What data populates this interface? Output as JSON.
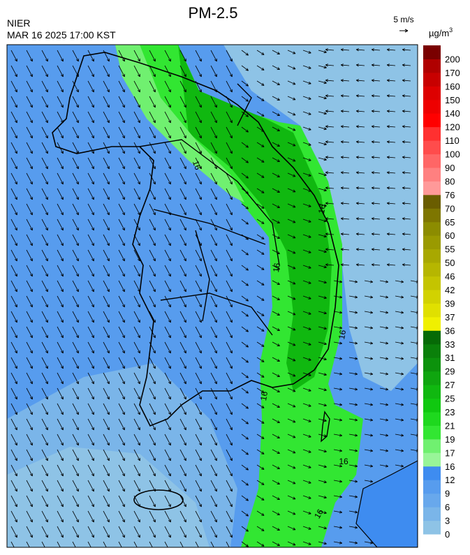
{
  "header": {
    "title": "PM-2.5",
    "agency": "NIER",
    "timestamp": "MAR 16 2025 17:00 KST",
    "wind_scale": "5 m/s"
  },
  "colorbar": {
    "unit": "µg/m",
    "unit_exponent": "3",
    "levels": [
      0,
      3,
      6,
      9,
      12,
      16,
      17,
      19,
      21,
      23,
      25,
      27,
      29,
      31,
      33,
      36,
      37,
      39,
      42,
      46,
      50,
      55,
      60,
      65,
      70,
      76,
      80,
      90,
      100,
      110,
      120,
      140,
      150,
      160,
      170,
      200
    ],
    "colors": [
      "#8ec3e6",
      "#7ab5e9",
      "#68a8ec",
      "#579cee",
      "#3e8cf0",
      "#98f598",
      "#70f070",
      "#32e632",
      "#1ed81e",
      "#10c810",
      "#10b810",
      "#0fa50f",
      "#0c920c",
      "#0a800a",
      "#066a06",
      "#f0f000",
      "#e0e000",
      "#d2d200",
      "#c4c400",
      "#b6b600",
      "#a8a800",
      "#9a9a00",
      "#8c8c00",
      "#7e7600",
      "#6a5d00",
      "#ff9999",
      "#ff8080",
      "#ff6666",
      "#ff4c4c",
      "#ff3030",
      "#ff0000",
      "#ee0000",
      "#dd0000",
      "#c80000",
      "#b00000",
      "#7a0000"
    ]
  },
  "contour_labels": [
    "16",
    "16",
    "16",
    "16",
    "16",
    "16",
    "16"
  ]
}
